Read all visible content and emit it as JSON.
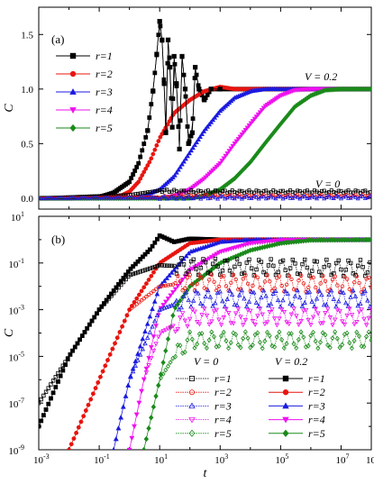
{
  "chart_data": [
    {
      "panel": "(a)",
      "type": "line",
      "xscale": "log",
      "xlim_exp": [
        -3,
        8
      ],
      "ylim": [
        -0.1,
        1.75
      ],
      "yticks": [
        0.0,
        0.5,
        1.0,
        1.5
      ],
      "ytick_labels": [
        "0.0",
        "0.5",
        "1.0",
        "1.5"
      ],
      "ylabel": "C",
      "annotations": [
        "V = 0.2",
        "V = 0"
      ],
      "legend": {
        "position": "upper-left",
        "entries": [
          "r=1",
          "r=2",
          "r=3",
          "r=4",
          "r=5"
        ]
      },
      "series": [
        {
          "name": "r=1",
          "color": "#000000",
          "marker": "square",
          "V": "0.2",
          "points": [
            [
              0.001,
              0
            ],
            [
              0.01,
              0
            ],
            [
              0.1,
              0.01
            ],
            [
              0.3,
              0.05
            ],
            [
              1,
              0.15
            ],
            [
              2,
              0.32
            ],
            [
              4,
              0.62
            ],
            [
              6,
              0.98
            ],
            [
              8,
              1.32
            ],
            [
              10,
              1.62
            ],
            [
              12,
              1.45
            ],
            [
              14,
              1.05
            ],
            [
              16,
              0.6
            ],
            [
              19,
              1.45
            ],
            [
              22,
              1.2
            ],
            [
              26,
              0.65
            ],
            [
              30,
              1.3
            ],
            [
              36,
              1.05
            ],
            [
              45,
              0.45
            ],
            [
              55,
              1.3
            ],
            [
              70,
              1.0
            ],
            [
              90,
              0.5
            ],
            [
              120,
              0.6
            ],
            [
              150,
              1.2
            ],
            [
              200,
              1.0
            ],
            [
              300,
              0.9
            ],
            [
              500,
              1.0
            ],
            [
              1000,
              1.0
            ],
            [
              100000,
              1.0
            ],
            [
              100000000,
              1.0
            ]
          ]
        },
        {
          "name": "r=2",
          "color": "#e8150f",
          "marker": "circle",
          "V": "0.2",
          "points": [
            [
              0.001,
              0
            ],
            [
              0.1,
              0
            ],
            [
              0.5,
              0.02
            ],
            [
              1,
              0.06
            ],
            [
              2,
              0.15
            ],
            [
              5,
              0.35
            ],
            [
              10,
              0.55
            ],
            [
              30,
              0.78
            ],
            [
              100,
              0.9
            ],
            [
              300,
              0.98
            ],
            [
              1000,
              1.02
            ],
            [
              3000,
              1.0
            ],
            [
              100000,
              1.0
            ],
            [
              100000000,
              1.0
            ]
          ]
        },
        {
          "name": "r=3",
          "color": "#1a1ae0",
          "marker": "triangle-up",
          "V": "0.2",
          "points": [
            [
              0.001,
              0
            ],
            [
              1,
              0
            ],
            [
              3,
              0.02
            ],
            [
              10,
              0.08
            ],
            [
              30,
              0.2
            ],
            [
              100,
              0.42
            ],
            [
              300,
              0.62
            ],
            [
              1000,
              0.8
            ],
            [
              3000,
              0.92
            ],
            [
              10000,
              0.98
            ],
            [
              30000,
              1.0
            ],
            [
              100000000,
              1.0
            ]
          ]
        },
        {
          "name": "r=4",
          "color": "#ee10ee",
          "marker": "triangle-down",
          "V": "0.2",
          "points": [
            [
              0.001,
              0
            ],
            [
              10,
              0
            ],
            [
              30,
              0.02
            ],
            [
              100,
              0.08
            ],
            [
              300,
              0.18
            ],
            [
              1000,
              0.32
            ],
            [
              3000,
              0.5
            ],
            [
              10000,
              0.68
            ],
            [
              30000,
              0.84
            ],
            [
              100000,
              0.94
            ],
            [
              300000,
              0.99
            ],
            [
              1000000,
              1.0
            ],
            [
              100000000,
              1.0
            ]
          ]
        },
        {
          "name": "r=5",
          "color": "#1a8a1a",
          "marker": "diamond",
          "V": "0.2",
          "points": [
            [
              0.001,
              0
            ],
            [
              100,
              0
            ],
            [
              300,
              0.02
            ],
            [
              1000,
              0.08
            ],
            [
              3000,
              0.18
            ],
            [
              10000,
              0.33
            ],
            [
              30000,
              0.5
            ],
            [
              100000,
              0.68
            ],
            [
              300000,
              0.84
            ],
            [
              1000000,
              0.94
            ],
            [
              3000000,
              0.99
            ],
            [
              10000000,
              1.0
            ],
            [
              100000000,
              1.0
            ]
          ]
        },
        {
          "name": "r=1",
          "color": "#000000",
          "marker": "open-square",
          "V": "0",
          "points": [
            [
              0.001,
              0
            ],
            [
              1,
              0.03
            ],
            [
              10,
              0.07
            ],
            [
              100,
              0.06
            ],
            [
              10000,
              0.06
            ],
            [
              100000000,
              0.06
            ]
          ]
        },
        {
          "name": "r=2",
          "color": "#e8150f",
          "marker": "open-circle",
          "V": "0",
          "points": [
            [
              0.001,
              0
            ],
            [
              10,
              0.01
            ],
            [
              100,
              0.02
            ],
            [
              100000000,
              0.02
            ]
          ]
        },
        {
          "name": "r=3",
          "color": "#1a1ae0",
          "marker": "open-triangle-up",
          "V": "0",
          "points": [
            [
              0.001,
              0
            ],
            [
              100,
              0.005
            ],
            [
              100000000,
              0.008
            ]
          ]
        }
      ]
    },
    {
      "panel": "(b)",
      "type": "line",
      "xscale": "log",
      "yscale": "log",
      "xlim_exp": [
        -3,
        8
      ],
      "ylim_exp": [
        -9,
        1
      ],
      "xtick_labels": [
        "10",
        "10",
        "10",
        "10",
        "10",
        "10"
      ],
      "xtick_exponents": [
        "-3",
        "-1",
        "1",
        "3",
        "5",
        "7"
      ],
      "ytick_labels": [
        "10",
        "10",
        "10",
        "10",
        "10",
        "10"
      ],
      "ytick_exponents": [
        "1",
        "-1",
        "-3",
        "-5",
        "-7",
        "-9"
      ],
      "last_xtick_label": "10",
      "xlabel": "t",
      "ylabel": "C",
      "legend_headers": [
        "V = 0",
        "V = 0.2"
      ],
      "legend_entries": [
        "r=1",
        "r=2",
        "r=3",
        "r=4",
        "r=5"
      ],
      "series": [
        {
          "name": "r=1",
          "V": "0.2",
          "color": "#000000",
          "marker": "square",
          "points": [
            [
              0.001,
              1e-08
            ],
            [
              0.01,
              1e-05
            ],
            [
              0.1,
              0.001
            ],
            [
              1,
              0.05
            ],
            [
              5,
              0.4
            ],
            [
              10,
              1.5
            ],
            [
              30,
              0.8
            ],
            [
              100,
              1.1
            ],
            [
              1000,
              1.0
            ],
            [
              100000000,
              1.0
            ]
          ]
        },
        {
          "name": "r=2",
          "V": "0.2",
          "color": "#e8150f",
          "marker": "circle",
          "points": [
            [
              0.01,
              1e-09
            ],
            [
              0.1,
              1e-06
            ],
            [
              1,
              0.001
            ],
            [
              10,
              0.1
            ],
            [
              100,
              0.7
            ],
            [
              1000,
              1.0
            ],
            [
              100000000,
              1.0
            ]
          ]
        },
        {
          "name": "r=3",
          "V": "0.2",
          "color": "#1a1ae0",
          "marker": "triangle-up",
          "points": [
            [
              0.3,
              1e-09
            ],
            [
              1,
              1e-06
            ],
            [
              10,
              0.01
            ],
            [
              100,
              0.3
            ],
            [
              1000,
              0.8
            ],
            [
              10000,
              1.0
            ],
            [
              100000000,
              1.0
            ]
          ]
        },
        {
          "name": "r=4",
          "V": "0.2",
          "color": "#ee10ee",
          "marker": "triangle-down",
          "points": [
            [
              1,
              1e-09
            ],
            [
              3,
              1e-06
            ],
            [
              10,
              0.001
            ],
            [
              100,
              0.05
            ],
            [
              1000,
              0.3
            ],
            [
              10000,
              0.7
            ],
            [
              100000,
              0.95
            ],
            [
              100000000,
              1.0
            ]
          ]
        },
        {
          "name": "r=5",
          "V": "0.2",
          "color": "#1a8a1a",
          "marker": "diamond",
          "points": [
            [
              3,
              1e-09
            ],
            [
              10,
              1e-06
            ],
            [
              30,
              0.001
            ],
            [
              100,
              0.01
            ],
            [
              1000,
              0.1
            ],
            [
              10000,
              0.35
            ],
            [
              100000,
              0.7
            ],
            [
              1000000,
              0.95
            ],
            [
              100000000,
              1.0
            ]
          ]
        },
        {
          "name": "r=1",
          "V": "0",
          "color": "#000000",
          "marker": "open-square",
          "points": [
            [
              0.001,
              1e-07
            ],
            [
              0.01,
              1e-05
            ],
            [
              0.1,
              0.001
            ],
            [
              1,
              0.03
            ],
            [
              10,
              0.08
            ],
            [
              100,
              0.07
            ],
            [
              100000000,
              0.06
            ]
          ]
        },
        {
          "name": "r=2",
          "V": "0",
          "color": "#e8150f",
          "marker": "open-circle",
          "points": [
            [
              0.01,
              1e-09
            ],
            [
              0.1,
              1e-06
            ],
            [
              1,
              0.001
            ],
            [
              10,
              0.01
            ],
            [
              100,
              0.015
            ],
            [
              100000000,
              0.012
            ]
          ]
        },
        {
          "name": "r=3",
          "V": "0",
          "color": "#1a1ae0",
          "marker": "open-triangle-up",
          "points": [
            [
              0.3,
              1e-09
            ],
            [
              1,
              1e-06
            ],
            [
              10,
              0.001
            ],
            [
              100,
              0.003
            ],
            [
              100000000,
              0.003
            ]
          ]
        },
        {
          "name": "r=4",
          "V": "0",
          "color": "#ee10ee",
          "marker": "open-triangle-down",
          "points": [
            [
              1,
              1e-09
            ],
            [
              3,
              1e-06
            ],
            [
              10,
              0.0001
            ],
            [
              100,
              0.0005
            ],
            [
              100000000,
              0.0005
            ]
          ]
        },
        {
          "name": "r=5",
          "V": "0",
          "color": "#1a8a1a",
          "marker": "open-diamond",
          "points": [
            [
              3,
              1e-09
            ],
            [
              10,
              1e-06
            ],
            [
              30,
              1e-05
            ],
            [
              100,
              5e-05
            ],
            [
              100000000,
              5e-05
            ]
          ]
        }
      ]
    }
  ]
}
